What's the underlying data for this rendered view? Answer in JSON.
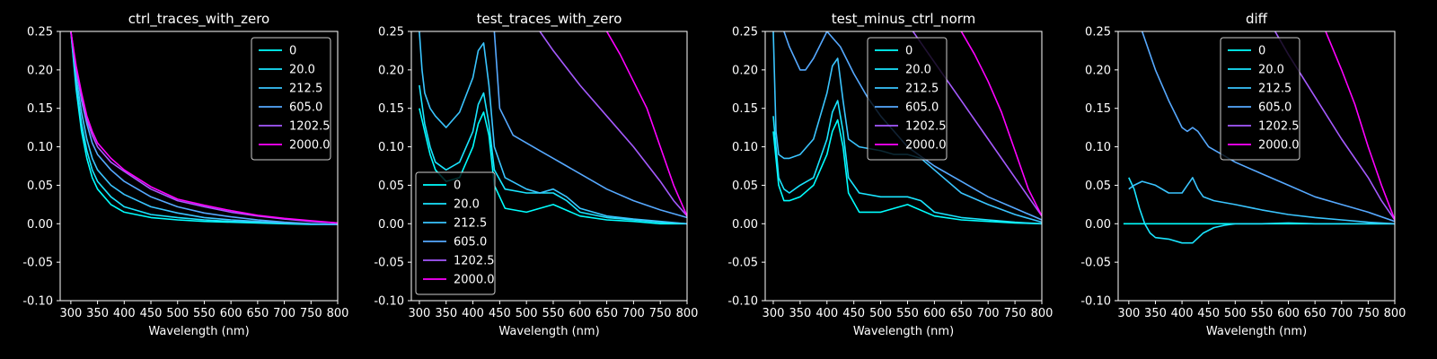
{
  "figure": {
    "background": "#000000",
    "foreground": "#ffffff"
  },
  "chart_data": [
    {
      "type": "line",
      "title": "ctrl_traces_with_zero",
      "xlabel": "Wavelength (nm)",
      "ylabel": "",
      "xlim": [
        280,
        800
      ],
      "ylim": [
        -0.1,
        0.25
      ],
      "xticks": [
        300,
        350,
        400,
        450,
        500,
        550,
        600,
        650,
        700,
        750,
        800
      ],
      "yticks": [
        -0.1,
        -0.05,
        0.0,
        0.05,
        0.1,
        0.15,
        0.2,
        0.25
      ],
      "legend": {
        "position": "top-right"
      },
      "series": [
        {
          "name": "0",
          "color": "#00ffff",
          "x": [
            300,
            310,
            320,
            330,
            340,
            350,
            375,
            400,
            450,
            500,
            550,
            600,
            650,
            700,
            750,
            800
          ],
          "y": [
            0.25,
            0.175,
            0.12,
            0.085,
            0.06,
            0.045,
            0.025,
            0.015,
            0.008,
            0.005,
            0.003,
            0.002,
            0.001,
            0.0,
            -0.001,
            -0.001
          ]
        },
        {
          "name": "20.0",
          "color": "#1ae5ff",
          "x": [
            300,
            310,
            320,
            330,
            340,
            350,
            375,
            400,
            450,
            500,
            550,
            600,
            650,
            700,
            750,
            800
          ],
          "y": [
            0.25,
            0.18,
            0.13,
            0.095,
            0.07,
            0.055,
            0.035,
            0.022,
            0.012,
            0.008,
            0.005,
            0.003,
            0.002,
            0.001,
            0.0,
            -0.001
          ]
        },
        {
          "name": "212.5",
          "color": "#3ac5ff",
          "x": [
            300,
            310,
            320,
            330,
            340,
            350,
            375,
            400,
            450,
            500,
            550,
            600,
            650,
            700,
            750,
            800
          ],
          "y": [
            0.25,
            0.19,
            0.145,
            0.11,
            0.085,
            0.07,
            0.05,
            0.038,
            0.022,
            0.014,
            0.008,
            0.005,
            0.003,
            0.001,
            0.0,
            -0.001
          ]
        },
        {
          "name": "605.0",
          "color": "#56a9ff",
          "x": [
            300,
            310,
            320,
            330,
            340,
            350,
            375,
            400,
            450,
            500,
            550,
            600,
            650,
            700,
            750,
            800
          ],
          "y": [
            0.25,
            0.2,
            0.16,
            0.13,
            0.105,
            0.09,
            0.07,
            0.055,
            0.035,
            0.022,
            0.014,
            0.009,
            0.005,
            0.002,
            0.0,
            -0.001
          ]
        },
        {
          "name": "1202.5",
          "color": "#a65aff",
          "x": [
            300,
            310,
            320,
            330,
            340,
            350,
            375,
            400,
            450,
            500,
            550,
            600,
            650,
            700,
            750,
            800
          ],
          "y": [
            0.25,
            0.2,
            0.165,
            0.135,
            0.115,
            0.1,
            0.08,
            0.068,
            0.045,
            0.03,
            0.022,
            0.015,
            0.01,
            0.006,
            0.003,
            0.001
          ]
        },
        {
          "name": "2000.0",
          "color": "#ff00ff",
          "x": [
            300,
            310,
            320,
            330,
            340,
            350,
            375,
            400,
            450,
            500,
            550,
            600,
            650,
            700,
            750,
            800
          ],
          "y": [
            0.25,
            0.205,
            0.17,
            0.14,
            0.12,
            0.105,
            0.085,
            0.07,
            0.048,
            0.032,
            0.024,
            0.017,
            0.011,
            0.007,
            0.004,
            0.001
          ]
        }
      ]
    },
    {
      "type": "line",
      "title": "test_traces_with_zero",
      "xlabel": "Wavelength (nm)",
      "ylabel": "",
      "xlim": [
        285,
        800
      ],
      "ylim": [
        -0.1,
        0.25
      ],
      "xticks": [
        300,
        350,
        400,
        450,
        500,
        550,
        600,
        650,
        700,
        750,
        800
      ],
      "yticks": [
        -0.1,
        -0.05,
        0.0,
        0.05,
        0.1,
        0.15,
        0.2,
        0.25
      ],
      "legend": {
        "position": "bottom-left"
      },
      "series": [
        {
          "name": "0",
          "color": "#00ffff",
          "x": [
            300,
            310,
            320,
            330,
            350,
            375,
            400,
            410,
            420,
            430,
            440,
            460,
            500,
            550,
            600,
            650,
            700,
            750,
            800
          ],
          "y": [
            0.15,
            0.12,
            0.09,
            0.07,
            0.055,
            0.06,
            0.1,
            0.13,
            0.145,
            0.115,
            0.05,
            0.02,
            0.015,
            0.025,
            0.01,
            0.005,
            0.003,
            0.0,
            0.0
          ]
        },
        {
          "name": "20.0",
          "color": "#1ae5ff",
          "x": [
            300,
            310,
            320,
            330,
            350,
            375,
            400,
            410,
            420,
            430,
            440,
            460,
            500,
            550,
            575,
            600,
            650,
            700,
            750,
            800
          ],
          "y": [
            0.18,
            0.13,
            0.1,
            0.08,
            0.07,
            0.08,
            0.12,
            0.155,
            0.17,
            0.13,
            0.07,
            0.045,
            0.04,
            0.04,
            0.03,
            0.015,
            0.008,
            0.005,
            0.002,
            0.0
          ]
        },
        {
          "name": "212.5",
          "color": "#3ac5ff",
          "x": [
            300,
            305,
            310,
            320,
            330,
            350,
            375,
            400,
            410,
            420,
            430,
            440,
            460,
            500,
            525,
            550,
            575,
            600,
            650,
            700,
            750,
            800
          ],
          "y": [
            0.25,
            0.2,
            0.17,
            0.15,
            0.14,
            0.125,
            0.145,
            0.19,
            0.225,
            0.235,
            0.18,
            0.1,
            0.06,
            0.045,
            0.04,
            0.045,
            0.035,
            0.02,
            0.01,
            0.006,
            0.003,
            0.0
          ]
        },
        {
          "name": "605.0",
          "color": "#56a9ff",
          "x": [
            440,
            450,
            475,
            500,
            525,
            550,
            575,
            600,
            650,
            700,
            750,
            800
          ],
          "y": [
            0.25,
            0.15,
            0.115,
            0.105,
            0.095,
            0.085,
            0.075,
            0.065,
            0.045,
            0.03,
            0.018,
            0.008
          ]
        },
        {
          "name": "1202.5",
          "color": "#a65aff",
          "x": [
            525,
            550,
            600,
            650,
            700,
            750,
            775,
            800
          ],
          "y": [
            0.25,
            0.225,
            0.18,
            0.14,
            0.1,
            0.055,
            0.03,
            0.01
          ]
        },
        {
          "name": "2000.0",
          "color": "#ff00ff",
          "x": [
            650,
            675,
            700,
            725,
            750,
            775,
            800
          ],
          "y": [
            0.25,
            0.22,
            0.185,
            0.15,
            0.1,
            0.05,
            0.01
          ]
        }
      ]
    },
    {
      "type": "line",
      "title": "test_minus_ctrl_norm",
      "xlabel": "Wavelength (nm)",
      "ylabel": "",
      "xlim": [
        285,
        800
      ],
      "ylim": [
        -0.1,
        0.25
      ],
      "xticks": [
        300,
        350,
        400,
        450,
        500,
        550,
        600,
        650,
        700,
        750,
        800
      ],
      "yticks": [
        -0.1,
        -0.05,
        0.0,
        0.05,
        0.1,
        0.15,
        0.2,
        0.25
      ],
      "legend": {
        "position": "top-center"
      },
      "series": [
        {
          "name": "0",
          "color": "#00ffff",
          "x": [
            300,
            310,
            320,
            330,
            350,
            375,
            400,
            410,
            420,
            430,
            440,
            460,
            500,
            550,
            600,
            650,
            700,
            750,
            800
          ],
          "y": [
            0.12,
            0.05,
            0.03,
            0.03,
            0.035,
            0.05,
            0.09,
            0.12,
            0.135,
            0.1,
            0.04,
            0.015,
            0.015,
            0.025,
            0.01,
            0.005,
            0.003,
            0.001,
            0.0
          ]
        },
        {
          "name": "20.0",
          "color": "#1ae5ff",
          "x": [
            300,
            310,
            320,
            330,
            350,
            375,
            400,
            410,
            420,
            430,
            440,
            460,
            500,
            550,
            575,
            600,
            650,
            700,
            750,
            800
          ],
          "y": [
            0.14,
            0.06,
            0.045,
            0.04,
            0.05,
            0.06,
            0.11,
            0.145,
            0.16,
            0.12,
            0.06,
            0.04,
            0.035,
            0.035,
            0.03,
            0.015,
            0.008,
            0.005,
            0.002,
            0.0
          ]
        },
        {
          "name": "212.5",
          "color": "#3ac5ff",
          "x": [
            300,
            305,
            310,
            320,
            330,
            350,
            375,
            400,
            410,
            420,
            430,
            440,
            460,
            500,
            525,
            550,
            575,
            600,
            650,
            700,
            750,
            800
          ],
          "y": [
            0.25,
            0.12,
            0.09,
            0.085,
            0.085,
            0.09,
            0.11,
            0.17,
            0.205,
            0.215,
            0.16,
            0.11,
            0.1,
            0.095,
            0.09,
            0.09,
            0.085,
            0.07,
            0.04,
            0.025,
            0.012,
            0.002
          ]
        },
        {
          "name": "605.0",
          "color": "#56a9ff",
          "x": [
            320,
            330,
            340,
            350,
            360,
            375,
            400,
            425,
            450,
            475,
            500,
            525,
            550,
            600,
            650,
            700,
            750,
            800
          ],
          "y": [
            0.25,
            0.23,
            0.215,
            0.2,
            0.2,
            0.215,
            0.25,
            0.23,
            0.195,
            0.165,
            0.14,
            0.12,
            0.1,
            0.075,
            0.055,
            0.035,
            0.02,
            0.005
          ]
        },
        {
          "name": "1202.5",
          "color": "#a65aff",
          "x": [
            560,
            600,
            650,
            700,
            750,
            775,
            800
          ],
          "y": [
            0.25,
            0.21,
            0.16,
            0.11,
            0.06,
            0.035,
            0.01
          ]
        },
        {
          "name": "2000.0",
          "color": "#ff00ff",
          "x": [
            650,
            675,
            700,
            725,
            750,
            775,
            800
          ],
          "y": [
            0.25,
            0.22,
            0.185,
            0.145,
            0.095,
            0.045,
            0.01
          ]
        }
      ]
    },
    {
      "type": "line",
      "title": "diff",
      "xlabel": "Wavelength (nm)",
      "ylabel": "",
      "xlim": [
        280,
        800
      ],
      "ylim": [
        -0.1,
        0.25
      ],
      "xticks": [
        300,
        350,
        400,
        450,
        500,
        550,
        600,
        650,
        700,
        750,
        800
      ],
      "yticks": [
        -0.1,
        -0.05,
        0.0,
        0.05,
        0.1,
        0.15,
        0.2,
        0.25
      ],
      "legend": {
        "position": "top-center"
      },
      "series": [
        {
          "name": "0",
          "color": "#00ffff",
          "x": [
            290,
            800
          ],
          "y": [
            0.0,
            0.0
          ]
        },
        {
          "name": "20.0",
          "color": "#1ae5ff",
          "x": [
            300,
            310,
            320,
            330,
            340,
            350,
            375,
            400,
            420,
            440,
            460,
            480,
            500,
            550,
            600,
            650,
            700,
            750,
            800
          ],
          "y": [
            0.06,
            0.045,
            0.02,
            0.0,
            -0.012,
            -0.018,
            -0.02,
            -0.025,
            -0.025,
            -0.012,
            -0.005,
            -0.002,
            0.0,
            0.0,
            0.001,
            0.0,
            0.0,
            0.0,
            0.0
          ]
        },
        {
          "name": "212.5",
          "color": "#3ac5ff",
          "x": [
            300,
            310,
            325,
            350,
            375,
            400,
            410,
            420,
            430,
            440,
            460,
            500,
            550,
            600,
            650,
            700,
            750,
            800
          ],
          "y": [
            0.045,
            0.05,
            0.055,
            0.05,
            0.04,
            0.04,
            0.05,
            0.06,
            0.045,
            0.035,
            0.03,
            0.025,
            0.018,
            0.012,
            0.008,
            0.005,
            0.002,
            0.0
          ]
        },
        {
          "name": "605.0",
          "color": "#56a9ff",
          "x": [
            325,
            350,
            375,
            400,
            410,
            420,
            430,
            450,
            475,
            500,
            550,
            600,
            650,
            700,
            750,
            800
          ],
          "y": [
            0.25,
            0.2,
            0.16,
            0.125,
            0.12,
            0.125,
            0.12,
            0.1,
            0.09,
            0.08,
            0.065,
            0.05,
            0.035,
            0.025,
            0.015,
            0.003
          ]
        },
        {
          "name": "1202.5",
          "color": "#a65aff",
          "x": [
            575,
            600,
            650,
            700,
            750,
            775,
            800
          ],
          "y": [
            0.25,
            0.22,
            0.165,
            0.11,
            0.06,
            0.03,
            0.005
          ]
        },
        {
          "name": "2000.0",
          "color": "#ff00ff",
          "x": [
            670,
            700,
            725,
            750,
            775,
            800
          ],
          "y": [
            0.25,
            0.2,
            0.155,
            0.1,
            0.05,
            0.005
          ]
        }
      ]
    }
  ]
}
